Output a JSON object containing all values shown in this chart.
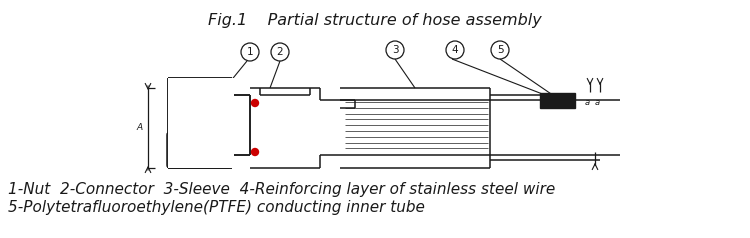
{
  "title": "Fig.1    Partial structure of hose assembly",
  "title_fontsize": 11.5,
  "caption_line1": "1-Nut  2-Connector  3-Sleeve  4-Reinforcing layer of stainless steel wire",
  "caption_line2": "5-Polytetrafluoroethylene(PTFE) conducting inner tube",
  "caption_fontsize": 11,
  "bg_color": "#ffffff",
  "line_color": "#1a1a1a",
  "red_dot_color": "#cc0000",
  "fig_width": 7.5,
  "fig_height": 2.38,
  "dpi": 100
}
